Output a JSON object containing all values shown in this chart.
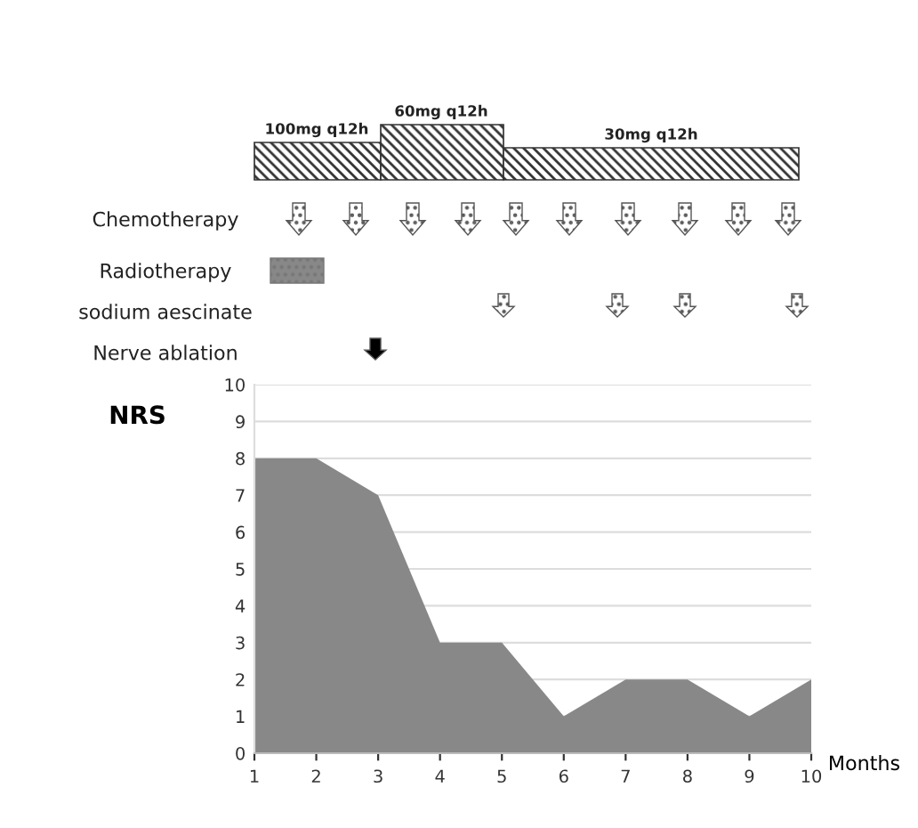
{
  "chart_data": {
    "type": "area",
    "ylabel": "NRS",
    "xlabel": "Months",
    "x": [
      1,
      2,
      3,
      4,
      5,
      6,
      7,
      8,
      9,
      10
    ],
    "series": [
      {
        "color": "#888888",
        "values": [
          8,
          8,
          7,
          3,
          3,
          1,
          2,
          2,
          1,
          2
        ]
      }
    ],
    "xlim": [
      1,
      10
    ],
    "xticks": [
      1,
      2,
      3,
      4,
      5,
      6,
      7,
      8,
      9,
      10
    ],
    "ylim": [
      0,
      10
    ],
    "yticks": [
      0,
      1,
      2,
      3,
      4,
      5,
      6,
      7,
      8,
      9,
      10
    ],
    "grid": "y",
    "annotations": [
      "100mg q12h",
      "60mg q12h",
      "30mg q12h",
      "Chemotherapy",
      "Radiotherapy",
      "sodium aescinate",
      "Nerve ablation"
    ]
  }
}
